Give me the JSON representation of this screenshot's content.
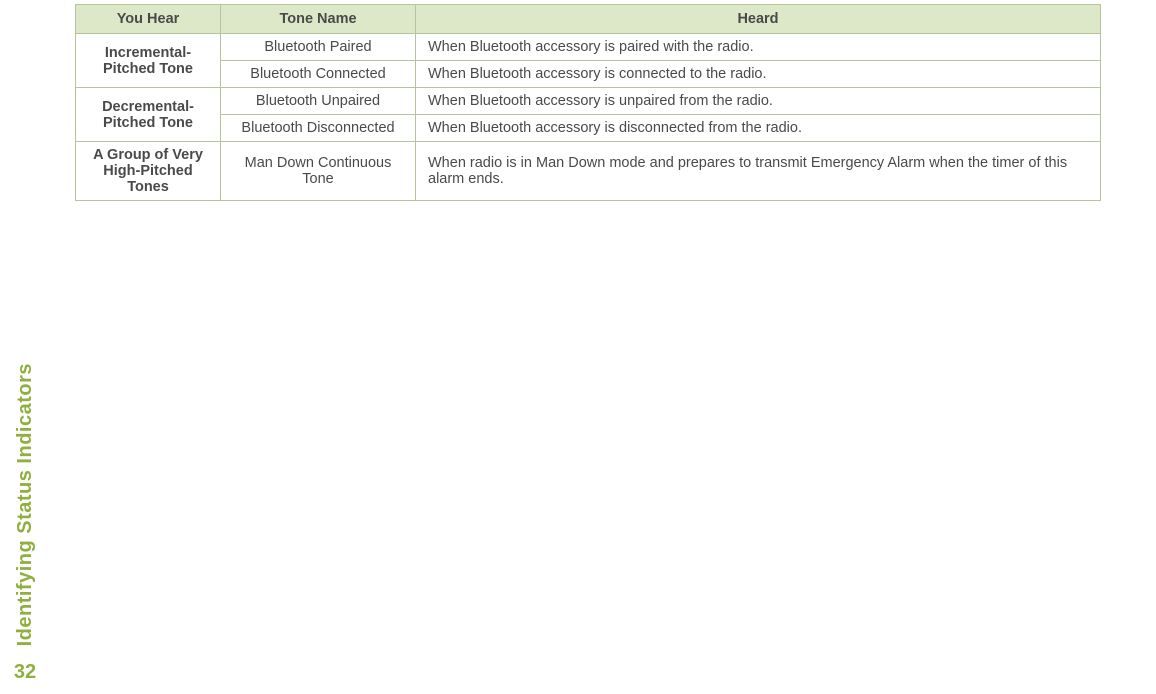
{
  "sidebar": {
    "title": "Identifying Status Indicators",
    "pageNumber": "32"
  },
  "table": {
    "headers": {
      "youHear": "You Hear",
      "toneName": "Tone Name",
      "heard": "Heard"
    },
    "rows": [
      {
        "youHear": "Incremental-Pitched Tone",
        "rowspan": 2,
        "toneName": "Bluetooth Paired",
        "heard": "When Bluetooth accessory is paired with the radio."
      },
      {
        "toneName": "Bluetooth Connected",
        "heard": "When Bluetooth accessory is connected to the radio."
      },
      {
        "youHear": "Decremental-Pitched Tone",
        "rowspan": 2,
        "toneName": "Bluetooth Unpaired",
        "heard": "When Bluetooth accessory is unpaired from the radio."
      },
      {
        "toneName": "Bluetooth Disconnected",
        "heard": "When Bluetooth accessory is disconnected from the radio."
      },
      {
        "youHear": "A Group of Very High-Pitched Tones",
        "rowspan": 1,
        "toneName": "Man Down Continuous Tone",
        "heard": "When radio is in Man Down mode and prepares to transmit Emergency Alarm when the timer of this alarm ends."
      }
    ]
  },
  "colors": {
    "headerBg": "#dde8c8",
    "borderColor": "#b5c49a",
    "textColor": "#4a4a4a",
    "accentColor": "#8fb03e"
  }
}
